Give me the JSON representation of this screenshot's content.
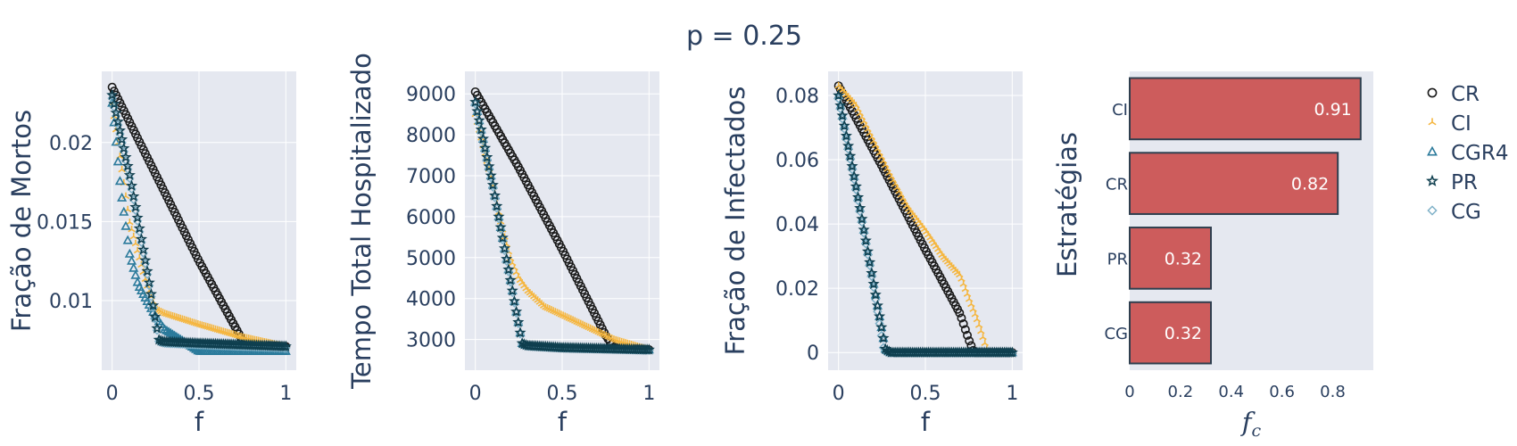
{
  "title": "p = 0.25",
  "colors": {
    "CR": "#1a1a1a",
    "CI": "#f5b63f",
    "CGR4": "#2b7a9b",
    "PR": "#0f3f4f",
    "CG": "#7fb1c8",
    "bar_fill": "#cd5c5c",
    "bar_edge": "#2f3f4f",
    "plot_bg": "#e5e8f0",
    "grid": "#ffffff"
  },
  "legend": [
    {
      "name": "CR",
      "marker": "circle-open"
    },
    {
      "name": "CI",
      "marker": "tri-up"
    },
    {
      "name": "CGR4",
      "marker": "triangle-open"
    },
    {
      "name": "PR",
      "marker": "star"
    },
    {
      "name": "CG",
      "marker": "diamond-open"
    }
  ],
  "chart_data": [
    {
      "type": "scatter",
      "xlabel": "f",
      "ylabel": "Fração de Mortos",
      "xlim": [
        -0.06,
        1.06
      ],
      "ylim": [
        0.0056,
        0.0245
      ],
      "xticks": [
        0,
        0.5,
        1
      ],
      "xtick_labels": [
        "0",
        "0.5",
        "1"
      ],
      "yticks": [
        0.01,
        0.015,
        0.02
      ],
      "ytick_labels": [
        "0.01",
        "0.015",
        "0.02"
      ],
      "series": [
        {
          "name": "CR",
          "x": [
            0,
            0.25,
            0.5,
            0.75,
            0.8,
            1.0
          ],
          "y": [
            0.0235,
            0.018,
            0.0125,
            0.0075,
            0.0072,
            0.0071
          ]
        },
        {
          "name": "CI",
          "x": [
            0,
            0.1,
            0.2,
            0.25,
            0.3,
            0.5,
            0.75,
            1.0
          ],
          "y": [
            0.0225,
            0.015,
            0.011,
            0.0095,
            0.0092,
            0.0085,
            0.0077,
            0.0071
          ]
        },
        {
          "name": "CGR4",
          "x": [
            0,
            0.05,
            0.1,
            0.15,
            0.2,
            0.25,
            0.3,
            0.5,
            1.0
          ],
          "y": [
            0.0225,
            0.017,
            0.013,
            0.011,
            0.01,
            0.009,
            0.0082,
            0.0068,
            0.0068
          ]
        },
        {
          "name": "PR",
          "x": [
            0,
            0.1,
            0.2,
            0.27,
            0.3,
            0.5,
            1.0
          ],
          "y": [
            0.023,
            0.018,
            0.012,
            0.0075,
            0.0074,
            0.0073,
            0.0071
          ]
        },
        {
          "name": "CG",
          "x": [
            0,
            0.1,
            0.2,
            0.27,
            0.3,
            0.5,
            1.0
          ],
          "y": [
            0.0228,
            0.0178,
            0.0118,
            0.0074,
            0.0073,
            0.0072,
            0.007
          ]
        }
      ]
    },
    {
      "type": "scatter",
      "xlabel": "f",
      "ylabel": "Tempo Total Hospitalizado",
      "xlim": [
        -0.06,
        1.06
      ],
      "ylim": [
        2250,
        9550
      ],
      "xticks": [
        0,
        0.5,
        1
      ],
      "xtick_labels": [
        "0",
        "0.5",
        "1"
      ],
      "yticks": [
        3000,
        4000,
        5000,
        6000,
        7000,
        8000,
        9000
      ],
      "ytick_labels": [
        "3000",
        "4000",
        "5000",
        "6000",
        "7000",
        "8000",
        "9000"
      ],
      "series": [
        {
          "name": "CR",
          "x": [
            0,
            0.25,
            0.5,
            0.75,
            0.8,
            1.0
          ],
          "y": [
            9050,
            7200,
            5200,
            3100,
            2800,
            2750
          ]
        },
        {
          "name": "CI",
          "x": [
            0,
            0.1,
            0.15,
            0.2,
            0.25,
            0.3,
            0.4,
            0.6,
            0.8,
            1.0
          ],
          "y": [
            8500,
            6800,
            5800,
            5000,
            4500,
            4200,
            3800,
            3400,
            3000,
            2750
          ]
        },
        {
          "name": "CGR4",
          "x": [
            0,
            0.1,
            0.2,
            0.27,
            0.3,
            0.5,
            1.0
          ],
          "y": [
            8800,
            6800,
            4500,
            2900,
            2850,
            2800,
            2750
          ]
        },
        {
          "name": "PR",
          "x": [
            0,
            0.1,
            0.2,
            0.27,
            0.3,
            0.5,
            1.0
          ],
          "y": [
            8800,
            6800,
            4500,
            2900,
            2850,
            2800,
            2750
          ]
        },
        {
          "name": "CG",
          "x": [
            0,
            0.1,
            0.2,
            0.27,
            0.3,
            0.5,
            1.0
          ],
          "y": [
            8750,
            6750,
            4450,
            2880,
            2840,
            2790,
            2740
          ]
        }
      ]
    },
    {
      "type": "scatter",
      "xlabel": "f",
      "ylabel": "Fração de Infectados",
      "xlim": [
        -0.06,
        1.06
      ],
      "ylim": [
        -0.0055,
        0.0875
      ],
      "xticks": [
        0,
        0.5,
        1
      ],
      "xtick_labels": [
        "0",
        "0.5",
        "1"
      ],
      "yticks": [
        0,
        0.02,
        0.04,
        0.06,
        0.08
      ],
      "ytick_labels": [
        "0",
        "0.02",
        "0.04",
        "0.06",
        "0.08"
      ],
      "series": [
        {
          "name": "CR",
          "x": [
            0,
            0.25,
            0.5,
            0.7,
            0.75,
            0.78,
            1.0
          ],
          "y": [
            0.083,
            0.058,
            0.032,
            0.012,
            0.004,
            0,
            0
          ]
        },
        {
          "name": "CI",
          "x": [
            0,
            0.1,
            0.2,
            0.3,
            0.4,
            0.5,
            0.6,
            0.7,
            0.8,
            0.86,
            1.0
          ],
          "y": [
            0.083,
            0.077,
            0.066,
            0.055,
            0.045,
            0.038,
            0.03,
            0.024,
            0.01,
            0,
            0
          ]
        },
        {
          "name": "CGR4",
          "x": [
            0,
            0.1,
            0.2,
            0.27,
            0.3,
            1.0
          ],
          "y": [
            0.08,
            0.052,
            0.022,
            0.001,
            0,
            0
          ]
        },
        {
          "name": "PR",
          "x": [
            0,
            0.1,
            0.2,
            0.27,
            0.3,
            1.0
          ],
          "y": [
            0.08,
            0.052,
            0.022,
            0.001,
            0,
            0
          ]
        },
        {
          "name": "CG",
          "x": [
            0,
            0.1,
            0.2,
            0.26,
            0.29,
            1.0
          ],
          "y": [
            0.079,
            0.051,
            0.021,
            0.001,
            0,
            0
          ]
        }
      ]
    },
    {
      "type": "bar",
      "orientation": "horizontal",
      "xlabel": "f",
      "xlabel_sub": "c",
      "ylabel": "Estratégias",
      "categories": [
        "CI",
        "CR",
        "PR",
        "CG"
      ],
      "values": [
        0.91,
        0.82,
        0.32,
        0.32
      ],
      "value_labels": [
        "0.91",
        "0.82",
        "0.32",
        "0.32"
      ],
      "xlim": [
        0,
        0.96
      ],
      "xticks": [
        0,
        0.2,
        0.4,
        0.6,
        0.8
      ],
      "xtick_labels": [
        "0",
        "0.2",
        "0.4",
        "0.6",
        "0.8"
      ]
    }
  ]
}
